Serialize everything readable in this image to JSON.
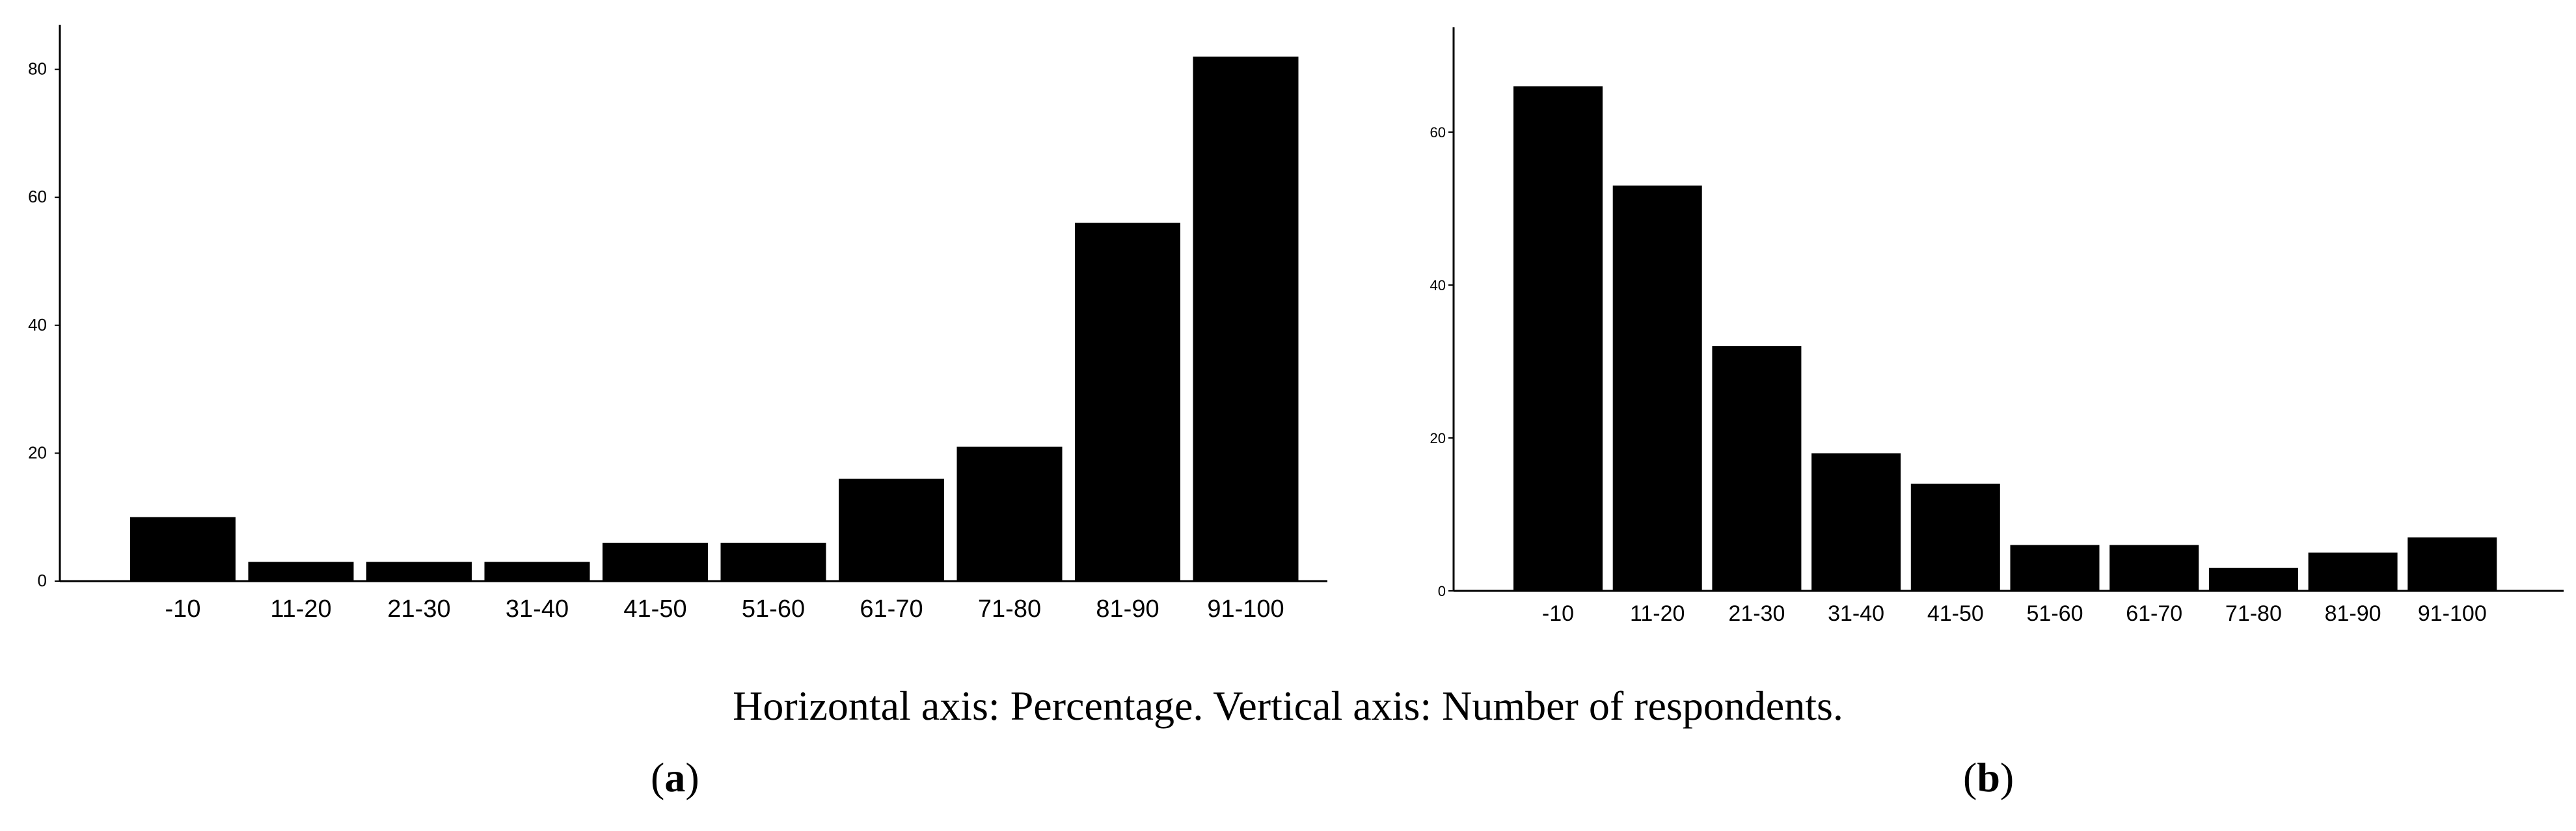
{
  "caption": "Horizontal axis: Percentage. Vertical axis: Number of respondents.",
  "panel_labels": {
    "a": "a",
    "b": "b"
  },
  "chart_data": [
    {
      "id": "a",
      "type": "bar",
      "categories": [
        "-10",
        "11-20",
        "21-30",
        "31-40",
        "41-50",
        "51-60",
        "61-70",
        "71-80",
        "81-90",
        "91-100"
      ],
      "values": [
        10,
        3,
        3,
        3,
        6,
        6,
        16,
        21,
        56,
        82
      ],
      "yticks": [
        0,
        20,
        40,
        60,
        80
      ],
      "ylim": [
        0,
        87
      ],
      "title": "",
      "xlabel": "",
      "ylabel": "",
      "bar_color": "#000000"
    },
    {
      "id": "b",
      "type": "bar",
      "categories": [
        "-10",
        "11-20",
        "21-30",
        "31-40",
        "41-50",
        "51-60",
        "61-70",
        "71-80",
        "81-90",
        "91-100"
      ],
      "values": [
        66,
        53,
        32,
        18,
        14,
        6,
        6,
        3,
        5,
        7
      ],
      "yticks": [
        0,
        20,
        40,
        60
      ],
      "ylim": [
        0,
        73
      ],
      "title": "",
      "xlabel": "",
      "ylabel": "",
      "bar_color": "#000000"
    }
  ]
}
